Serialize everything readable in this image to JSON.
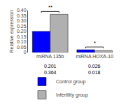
{
  "chart_data": {
    "type": "bar",
    "categories": [
      "miRNA 135b",
      "miRNA HOXA-10"
    ],
    "series": [
      {
        "name": "Control group",
        "color": "#0000ff",
        "values": [
          0.201,
          0.026
        ]
      },
      {
        "name": "Infertility group",
        "color": "#b0b0b0",
        "values": [
          0.364,
          0.018
        ]
      }
    ],
    "ylabel": "Relative expression",
    "ylim": [
      0,
      0.4
    ],
    "yticks": [
      0,
      0.05,
      {
        "value": 0.1,
        "label": "0.10"
      },
      0.15,
      {
        "value": 0.2,
        "label": "0.20"
      },
      0.25,
      {
        "value": 0.3,
        "label": "0.30"
      },
      0.35,
      {
        "value": 0.4,
        "label": "0.40"
      }
    ],
    "grid": false,
    "legend": "bottom left",
    "data_labels": true,
    "annotations": [
      {
        "text": "**",
        "category": "miRNA 135b"
      },
      {
        "text": "*",
        "category": "miRNA HOXA-10"
      }
    ]
  }
}
